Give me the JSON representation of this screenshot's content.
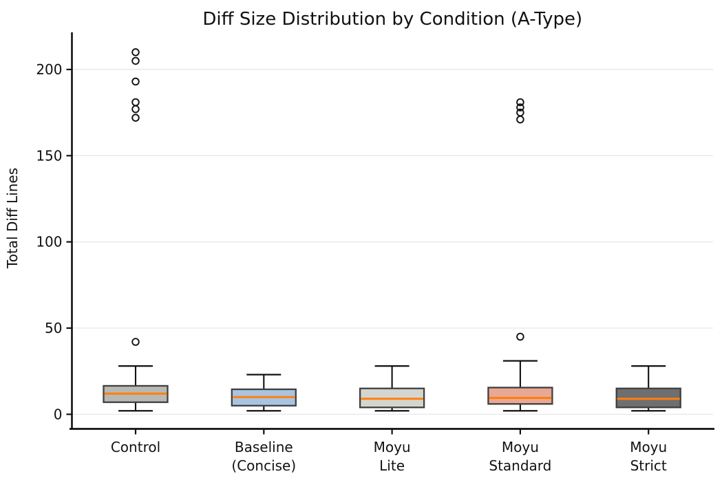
{
  "chart_data": {
    "type": "boxplot",
    "title": "Diff Size Distribution by Condition (A-Type)",
    "xlabel": "",
    "ylabel": "Total Diff Lines",
    "yticks": [
      0,
      50,
      100,
      150,
      200
    ],
    "ylim": [
      -8.5,
      221.5
    ],
    "grid": "horizontal-only",
    "legend": "none",
    "colors": {
      "background": "#ffffff",
      "grid": "#e9e9e9",
      "spine": "#111111",
      "box_edge": "#3f3f3f",
      "whisker": "#111111",
      "median": "#ff7f0e",
      "outlier_stroke": "#111111",
      "text": "#111111"
    },
    "series": [
      {
        "label": "Control",
        "label_lines": [
          "Control"
        ],
        "fill": "#b9b9b4",
        "whislo": 2,
        "q1": 7,
        "med": 12,
        "q3": 16.5,
        "whishi": 28,
        "outliers": [
          42,
          172,
          177,
          181,
          193,
          205,
          210
        ]
      },
      {
        "label": "Baseline (Concise)",
        "label_lines": [
          "Baseline",
          "(Concise)"
        ],
        "fill": "#a8c4e0",
        "whislo": 2,
        "q1": 5,
        "med": 10,
        "q3": 14.5,
        "whishi": 23,
        "outliers": []
      },
      {
        "label": "Moyu Lite",
        "label_lines": [
          "Moyu",
          "Lite"
        ],
        "fill": "#d5d5cf",
        "whislo": 2,
        "q1": 4,
        "med": 9,
        "q3": 15,
        "whishi": 28,
        "outliers": []
      },
      {
        "label": "Moyu Standard",
        "label_lines": [
          "Moyu",
          "Standard"
        ],
        "fill": "#e9a894",
        "whislo": 2,
        "q1": 6,
        "med": 9.5,
        "q3": 15.5,
        "whishi": 31,
        "outliers": [
          45,
          171,
          175,
          178,
          181
        ]
      },
      {
        "label": "Moyu Strict",
        "label_lines": [
          "Moyu",
          "Strict"
        ],
        "fill": "#6f6f6f",
        "whislo": 2,
        "q1": 4,
        "med": 9,
        "q3": 15,
        "whishi": 28,
        "outliers": []
      }
    ]
  }
}
